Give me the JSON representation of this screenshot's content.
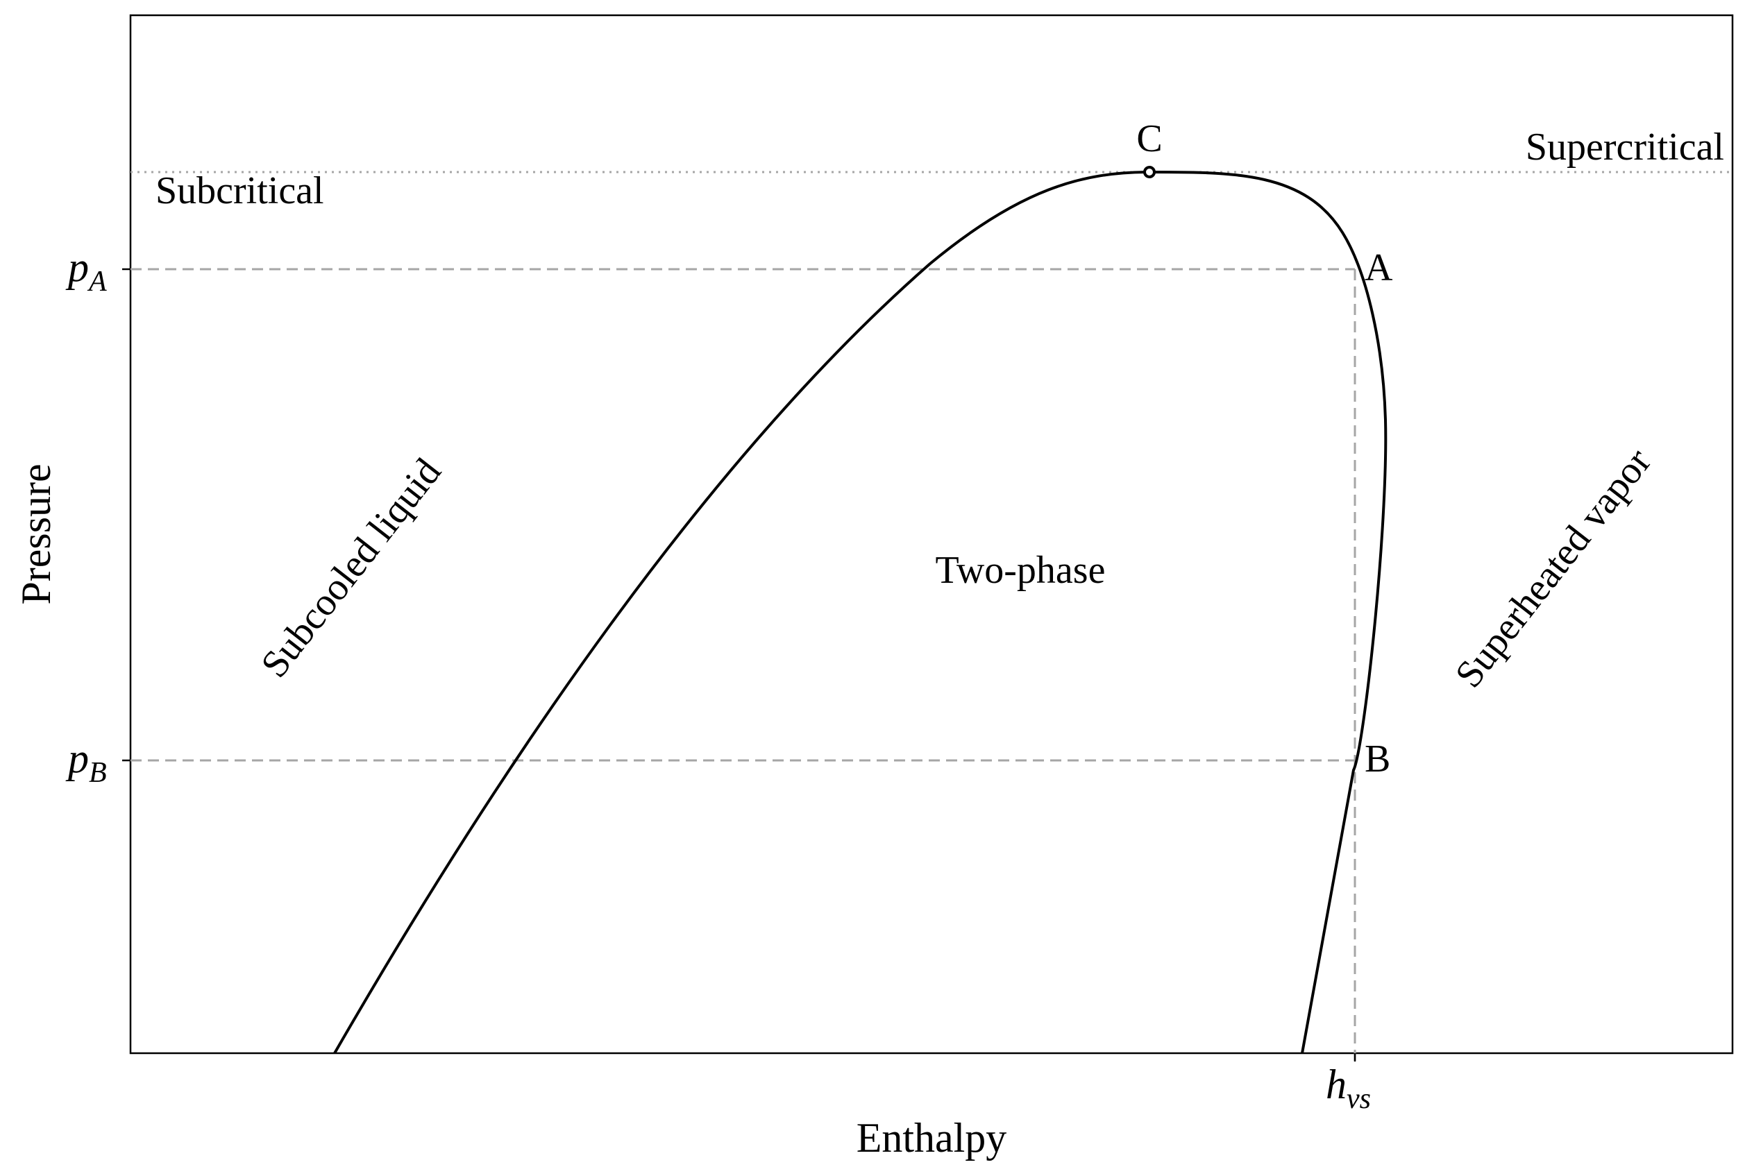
{
  "axes": {
    "x_label": "Enthalpy",
    "y_label": "Pressure"
  },
  "ticks": {
    "pA": {
      "base": "p",
      "sub": "A"
    },
    "pB": {
      "base": "p",
      "sub": "B"
    },
    "hvs": {
      "base": "h",
      "sub": "vs"
    }
  },
  "regions": {
    "subcritical": "Subcritical",
    "supercritical": "Supercritical",
    "subcooled": "Subcooled liquid",
    "two_phase": "Two-phase",
    "superheated": "Superheated vapor"
  },
  "points": {
    "C": "C",
    "A": "A",
    "B": "B"
  },
  "colors": {
    "curve": "#000000",
    "reference_lines": "#a6a6a6",
    "critical_line": "#a6a6a6"
  }
}
